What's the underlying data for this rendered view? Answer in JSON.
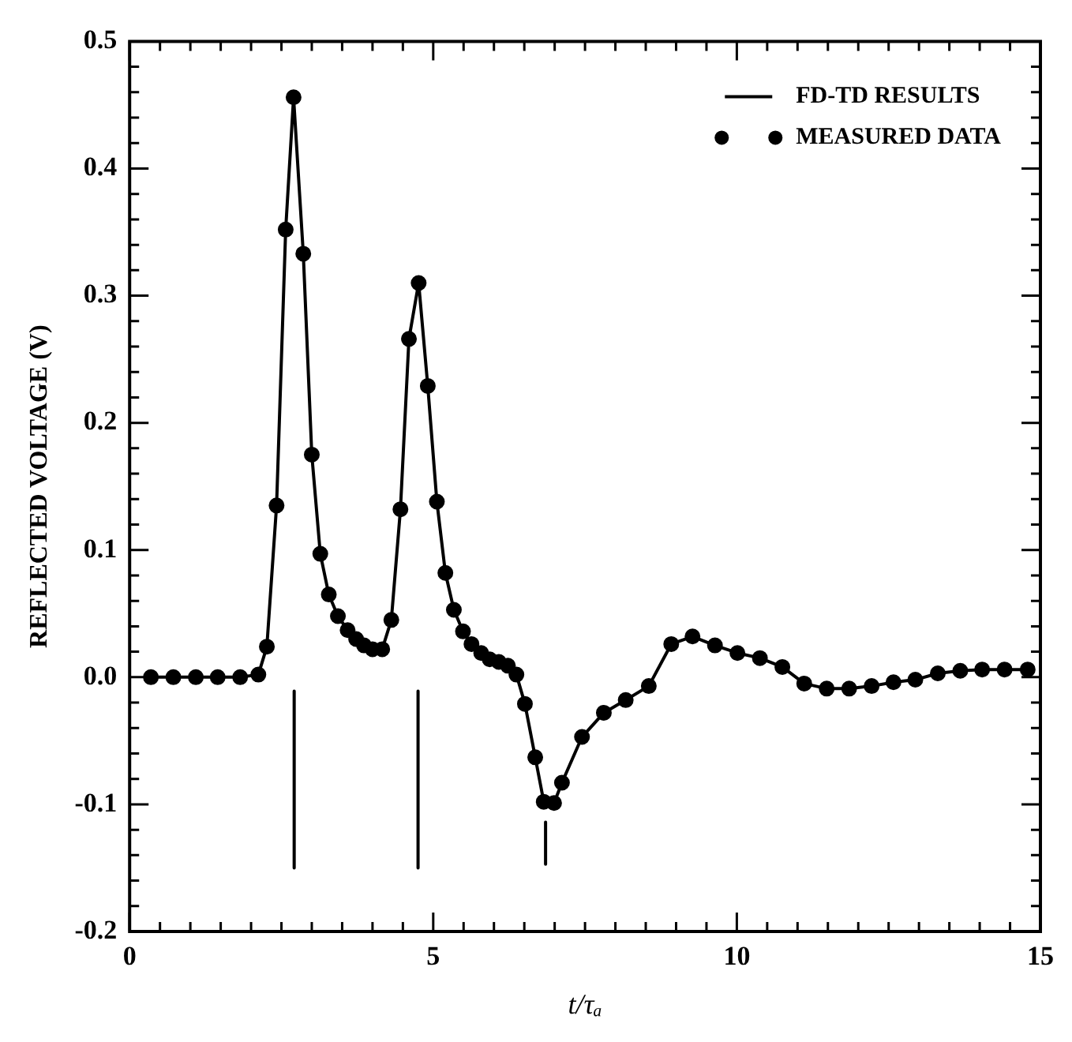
{
  "chart_data": {
    "type": "line",
    "xlabel": "t/τₐ",
    "ylabel": "REFLECTED VOLTAGE (V)",
    "xlim": [
      0,
      15
    ],
    "ylim": [
      -0.2,
      0.5
    ],
    "xticks": [
      0,
      {
        "value": 0.5,
        "label": null
      },
      {
        "value": 1,
        "label": null
      },
      {
        "value": 1.5,
        "label": null
      },
      {
        "value": 2,
        "label": null
      },
      {
        "value": 2.5,
        "label": null
      },
      {
        "value": 3,
        "label": null
      },
      {
        "value": 3.5,
        "label": null
      },
      {
        "value": 4,
        "label": null
      },
      {
        "value": 4.5,
        "label": null
      },
      5,
      {
        "value": 5.5,
        "label": null
      },
      {
        "value": 6,
        "label": null
      },
      {
        "value": 6.5,
        "label": null
      },
      {
        "value": 7,
        "label": null
      },
      {
        "value": 7.5,
        "label": null
      },
      {
        "value": 8,
        "label": null
      },
      {
        "value": 8.5,
        "label": null
      },
      {
        "value": 9,
        "label": null
      },
      {
        "value": 9.5,
        "label": null
      },
      10,
      {
        "value": 10.5,
        "label": null
      },
      {
        "value": 11,
        "label": null
      },
      {
        "value": 11.5,
        "label": null
      },
      {
        "value": 12,
        "label": null
      },
      {
        "value": 12.5,
        "label": null
      },
      {
        "value": 13,
        "label": null
      },
      {
        "value": 13.5,
        "label": null
      },
      {
        "value": 14,
        "label": null
      },
      {
        "value": 14.5,
        "label": null
      },
      15
    ],
    "yticks": [
      {
        "value": -0.2,
        "label": "-0.2"
      },
      {
        "value": -0.18,
        "label": null
      },
      {
        "value": -0.16,
        "label": null
      },
      {
        "value": -0.14,
        "label": null
      },
      {
        "value": -0.12,
        "label": null
      },
      {
        "value": -0.1,
        "label": "-0.1"
      },
      {
        "value": -0.08,
        "label": null
      },
      {
        "value": -0.06,
        "label": null
      },
      {
        "value": -0.04,
        "label": null
      },
      {
        "value": -0.02,
        "label": null
      },
      {
        "value": 0,
        "label": "0.0"
      },
      {
        "value": 0.02,
        "label": null
      },
      {
        "value": 0.04,
        "label": null
      },
      {
        "value": 0.06,
        "label": null
      },
      {
        "value": 0.08,
        "label": null
      },
      0.1,
      {
        "value": 0.12,
        "label": null
      },
      {
        "value": 0.14,
        "label": null
      },
      {
        "value": 0.16,
        "label": null
      },
      {
        "value": 0.18,
        "label": null
      },
      0.2,
      {
        "value": 0.22,
        "label": null
      },
      {
        "value": 0.24,
        "label": null
      },
      {
        "value": 0.26,
        "label": null
      },
      {
        "value": 0.28,
        "label": null
      },
      0.3,
      {
        "value": 0.32,
        "label": null
      },
      {
        "value": 0.34,
        "label": null
      },
      {
        "value": 0.36,
        "label": null
      },
      {
        "value": 0.38,
        "label": null
      },
      0.4,
      {
        "value": 0.42,
        "label": null
      },
      {
        "value": 0.44,
        "label": null
      },
      {
        "value": 0.46,
        "label": null
      },
      {
        "value": 0.48,
        "label": null
      },
      0.5
    ],
    "grid": false,
    "legend": "top right",
    "series": [
      {
        "name": "FD-TD RESULTS",
        "marker": "none",
        "line_style": "solid",
        "color": "#000000",
        "x": [
          0.35,
          0.72,
          1.09,
          1.45,
          1.82,
          2.12,
          2.26,
          2.42,
          2.57,
          2.7,
          2.86,
          3.0,
          3.14,
          3.28,
          3.43,
          3.59,
          3.73,
          3.86,
          4.0,
          4.16,
          4.31,
          4.46,
          4.6,
          4.76,
          4.91,
          5.06,
          5.2,
          5.34,
          5.49,
          5.63,
          5.79,
          5.93,
          6.08,
          6.23,
          6.37,
          6.51,
          6.68,
          6.82,
          6.99,
          7.12,
          7.45,
          7.81,
          8.17,
          8.55,
          8.92,
          9.27,
          9.64,
          10.01,
          10.38,
          10.75,
          11.11,
          11.48,
          11.85,
          12.22,
          12.58,
          12.94,
          13.31,
          13.68,
          14.04,
          14.41,
          14.79
        ],
        "values": [
          0,
          0,
          0,
          0,
          0,
          0.002,
          0.024,
          0.135,
          0.352,
          0.456,
          0.333,
          0.175,
          0.097,
          0.065,
          0.048,
          0.037,
          0.03,
          0.025,
          0.022,
          0.022,
          0.045,
          0.132,
          0.266,
          0.31,
          0.229,
          0.138,
          0.082,
          0.053,
          0.036,
          0.026,
          0.019,
          0.014,
          0.012,
          0.009,
          0.002,
          -0.021,
          -0.063,
          -0.098,
          -0.099,
          -0.083,
          -0.047,
          -0.028,
          -0.018,
          -0.007,
          0.026,
          0.032,
          0.025,
          0.019,
          0.015,
          0.008,
          -0.005,
          -0.009,
          -0.009,
          -0.007,
          -0.004,
          -0.002,
          0.003,
          0.005,
          0.006,
          0.006,
          0.006
        ]
      },
      {
        "name": "MEASURED DATA",
        "type": "scatter",
        "marker": "circle",
        "color": "#000000",
        "x": [
          0.35,
          0.72,
          1.09,
          1.45,
          1.82,
          2.12,
          2.26,
          2.42,
          2.57,
          2.7,
          2.86,
          3.0,
          3.14,
          3.28,
          3.43,
          3.59,
          3.73,
          3.86,
          4.0,
          4.16,
          4.31,
          4.46,
          4.6,
          4.76,
          4.91,
          5.06,
          5.2,
          5.34,
          5.49,
          5.63,
          5.79,
          5.93,
          6.08,
          6.23,
          6.37,
          6.51,
          6.68,
          6.82,
          6.99,
          7.12,
          7.45,
          7.81,
          8.17,
          8.55,
          8.92,
          9.27,
          9.64,
          10.01,
          10.38,
          10.75,
          11.11,
          11.48,
          11.85,
          12.22,
          12.58,
          12.94,
          13.31,
          13.68,
          14.04,
          14.41,
          14.79
        ],
        "values": [
          0,
          0,
          0,
          0,
          0,
          0.002,
          0.024,
          0.135,
          0.352,
          0.456,
          0.333,
          0.175,
          0.097,
          0.065,
          0.048,
          0.037,
          0.03,
          0.025,
          0.022,
          0.022,
          0.045,
          0.132,
          0.266,
          0.31,
          0.229,
          0.138,
          0.082,
          0.053,
          0.036,
          0.026,
          0.019,
          0.014,
          0.012,
          0.009,
          0.002,
          -0.021,
          -0.063,
          -0.098,
          -0.099,
          -0.083,
          -0.047,
          -0.028,
          -0.018,
          -0.007,
          0.026,
          0.032,
          0.025,
          0.019,
          0.015,
          0.008,
          -0.005,
          -0.009,
          -0.009,
          -0.007,
          -0.004,
          -0.002,
          0.003,
          0.005,
          0.006,
          0.006,
          0.006
        ]
      },
      {
        "marker": "none",
        "line_style": "solid",
        "color": "#000000",
        "x": [
          2.71,
          2.71
        ],
        "values": [
          -0.011,
          -0.15
        ]
      },
      {
        "marker": "none",
        "line_style": "solid",
        "color": "#000000",
        "x": [
          4.75,
          4.75
        ],
        "values": [
          -0.011,
          -0.15
        ]
      },
      {
        "marker": "none",
        "line_style": "solid",
        "color": "#000000",
        "x": [
          6.85,
          6.85
        ],
        "values": [
          -0.114,
          -0.147
        ]
      }
    ]
  }
}
